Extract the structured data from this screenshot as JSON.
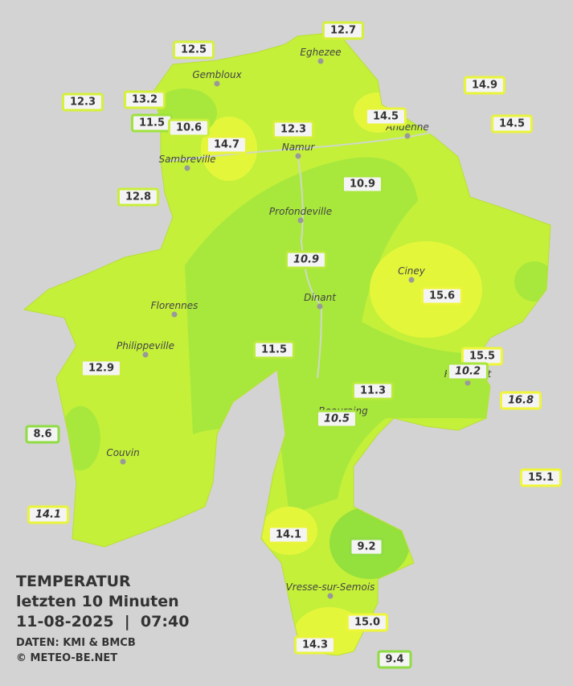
{
  "title": {
    "line1": "TEMPERATUR",
    "line2": "letzten 10 Minuten",
    "line3": "11-08-2025  |  07:40",
    "source": "DATEN: KMI & BMCB",
    "copyright": "© METEO-BE.NET"
  },
  "cities": [
    "Eghezee",
    "Gembloux",
    "Andenne",
    "Sambreville",
    "Namur",
    "Profondeville",
    "Ciney",
    "Florennes",
    "Dinant",
    "Philippeville",
    "Couvin",
    "Vresse-sur-Semois",
    "Rochefort",
    "Beauraing"
  ],
  "stations": [
    {
      "label": "12.7",
      "color": "#d6f03a"
    },
    {
      "label": "12.5",
      "color": "#d6f03a"
    },
    {
      "label": "12.3",
      "color": "#d6f03a"
    },
    {
      "label": "13.2",
      "color": "#d6f03a"
    },
    {
      "label": "11.5",
      "color": "#9ee23c"
    },
    {
      "label": "10.6",
      "color": "#c8ee3a"
    },
    {
      "label": "14.7",
      "color": "#e8f43a"
    },
    {
      "label": "12.3",
      "color": "#d6f03a"
    },
    {
      "label": "14.5",
      "color": "#e8f43a"
    },
    {
      "label": "14.9",
      "color": "#e8f43a"
    },
    {
      "label": "14.5",
      "color": "#e8f43a"
    },
    {
      "label": "10.9",
      "color": "#a8e63c"
    },
    {
      "label": "12.8",
      "color": "#c8ee3a"
    },
    {
      "label": "10.9",
      "color": "#b8ea3a"
    },
    {
      "label": "15.6",
      "color": "#eef63a"
    },
    {
      "label": "11.5",
      "color": "#b8ea3a"
    },
    {
      "label": "15.5",
      "color": "#eef63a"
    },
    {
      "label": "10.2",
      "color": "#a8e63c"
    },
    {
      "label": "12.9",
      "color": "#c8ee3a"
    },
    {
      "label": "11.3",
      "color": "#b8ea3a"
    },
    {
      "label": "16.8",
      "color": "#f0f43a"
    },
    {
      "label": "10.5",
      "color": "#a8e63c"
    },
    {
      "label": "8.6",
      "color": "#8fdc44"
    },
    {
      "label": "15.1",
      "color": "#eef63a"
    },
    {
      "label": "14.1",
      "color": "#e8f43a"
    },
    {
      "label": "14.1",
      "color": "#e8f43a"
    },
    {
      "label": "9.2",
      "color": "#8fdc44"
    },
    {
      "label": "15.0",
      "color": "#eef63a"
    },
    {
      "label": "14.3",
      "color": "#e8f43a"
    },
    {
      "label": "9.4",
      "color": "#8fdc44"
    }
  ]
}
